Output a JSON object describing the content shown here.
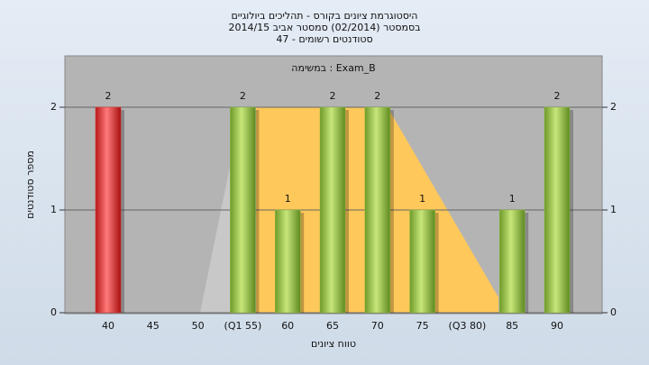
{
  "chart_data": {
    "type": "bar",
    "title": "היסטוגרמת ציונים בקורס - תהליכים ביולוגיים",
    "subtitle": "בסמסטר  (02/2014)  סמסטר אביב 2014/15",
    "subtitle2": "סטודנטים רשומים - 47",
    "annotation": "במשימה : Exam_B",
    "x_label": "טווח ציונים",
    "y_label": "מספר סטודנטים",
    "categories": [
      "40",
      "45",
      "50",
      "(Q1 55)",
      "60",
      "65",
      "70",
      "75",
      "(Q3 80)",
      "85",
      "90"
    ],
    "values": [
      2,
      0,
      0,
      2,
      1,
      2,
      2,
      1,
      0,
      1,
      2
    ],
    "colors": [
      "#e03030",
      "#8cbc3c",
      "#8cbc3c",
      "#8cbc3c",
      "#8cbc3c",
      "#8cbc3c",
      "#8cbc3c",
      "#8cbc3c",
      "#8cbc3c",
      "#8cbc3c",
      "#8cbc3c"
    ],
    "ylim": [
      0,
      2.5
    ],
    "yticks": [
      0,
      1,
      2
    ],
    "grid": true
  }
}
